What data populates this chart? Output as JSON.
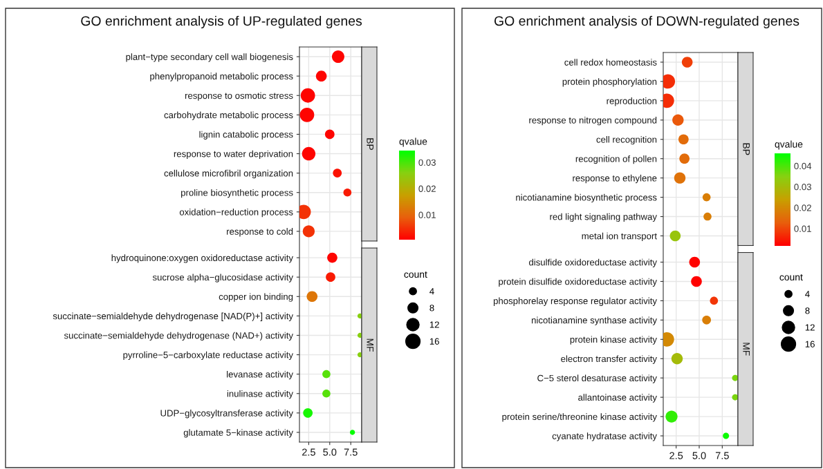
{
  "chart_data": [
    {
      "type": "bubble",
      "orientation": "horizontal",
      "title": "GO enrichment analysis of UP-regulated genes",
      "annotations": [
        "BP",
        "MF"
      ],
      "categories": [
        "plant−type secondary cell wall biogenesis",
        "phenylpropanoid metabolic process",
        "response to osmotic stress",
        "carbohydrate metabolic process",
        "lignin catabolic process",
        "response to water deprivation",
        "cellulose microfibril organization",
        "proline biosynthetic process",
        "oxidation−reduction process",
        "response to cold",
        "hydroquinone:oxygen oxidoreductase activity",
        "sucrose alpha−glucosidase activity",
        "copper ion binding",
        "succinate−semialdehyde dehydrogenase [NAD(P)+] activity",
        "succinate−semialdehyde dehydrogenase (NAD+) activity",
        "pyrroline−5−carboxylate reductase activity",
        "levanase activity",
        "inulinase activity",
        "UDP−glycosyltransferase activity",
        "glutamate 5−kinase activity"
      ],
      "values": [
        6.0,
        4.0,
        2.4,
        2.3,
        5.0,
        2.5,
        5.9,
        7.1,
        1.9,
        2.5,
        5.3,
        5.1,
        2.9,
        8.6,
        8.6,
        8.6,
        4.6,
        4.6,
        2.4,
        7.7
      ],
      "sizes": [
        12,
        9,
        16,
        16,
        7,
        14,
        6,
        5,
        16,
        11,
        8,
        7,
        9,
        2,
        2,
        2,
        5,
        5,
        7,
        2
      ],
      "cvalues": [
        0.001,
        0.001,
        0.001,
        0.001,
        0.001,
        0.001,
        0.002,
        0.003,
        0.005,
        0.005,
        0.001,
        0.003,
        0.012,
        0.026,
        0.026,
        0.026,
        0.029,
        0.029,
        0.033,
        0.034
      ],
      "clabel": "qvalue",
      "clim": [
        0.0005,
        0.0345
      ],
      "cticks": [
        0.01,
        0.02,
        0.03
      ],
      "legend_title": "count",
      "size_legend": [
        4,
        8,
        12,
        16
      ],
      "xlim": [
        1.4,
        8.8
      ],
      "xticks": [
        {
          "value": 2.5,
          "label": "2.5"
        },
        {
          "value": 5.0,
          "label": "5.0"
        },
        {
          "value": 7.5,
          "label": "7.5"
        }
      ],
      "grid": true
    },
    {
      "type": "bubble",
      "orientation": "horizontal",
      "title": "GO enrichment analysis of DOWN-regulated genes",
      "annotations": [
        "BP",
        "MF"
      ],
      "categories": [
        "cell redox homeostasis",
        "protein phosphorylation",
        "reproduction",
        "response to nitrogen compound",
        "cell recognition",
        "recognition of pollen",
        "response to ethylene",
        "nicotianamine biosynthetic process",
        "red light signaling pathway",
        "metal ion transport",
        "disulfide oxidoreductase activity",
        "protein disulfide oxidoreductase activity",
        "phosphorelay response regulator activity",
        "nicotianamine synthase activity",
        "protein kinase activity",
        "electron transfer activity",
        "C−5 sterol desaturase activity",
        "allantoinase activity",
        "protein serine/threonine kinase activity",
        "cyanate hydratase activity"
      ],
      "values": [
        3.7,
        1.6,
        1.5,
        2.7,
        3.3,
        3.4,
        2.9,
        5.8,
        5.9,
        2.4,
        4.5,
        4.7,
        6.6,
        5.8,
        1.5,
        2.6,
        8.9,
        8.9,
        2.0,
        7.9
      ],
      "sizes": [
        9,
        16,
        16,
        10,
        8,
        8,
        10,
        5,
        5,
        9,
        9,
        9,
        5,
        6,
        16,
        10,
        3,
        3,
        11,
        3
      ],
      "cvalues": [
        0.009,
        0.007,
        0.007,
        0.012,
        0.015,
        0.015,
        0.016,
        0.018,
        0.018,
        0.032,
        0.002,
        0.002,
        0.008,
        0.018,
        0.02,
        0.03,
        0.036,
        0.036,
        0.042,
        0.045
      ],
      "clabel": "qvalue",
      "clim": [
        0.0017,
        0.046
      ],
      "cticks": [
        0.01,
        0.02,
        0.03,
        0.04
      ],
      "legend_title": "count",
      "size_legend": [
        4,
        8,
        12,
        16
      ],
      "xlim": [
        1.1,
        9.2
      ],
      "xticks": [
        {
          "value": 2.5,
          "label": "2.5"
        },
        {
          "value": 5.0,
          "label": "5.0"
        },
        {
          "value": 7.5,
          "label": "7.5"
        }
      ],
      "grid": true
    }
  ]
}
